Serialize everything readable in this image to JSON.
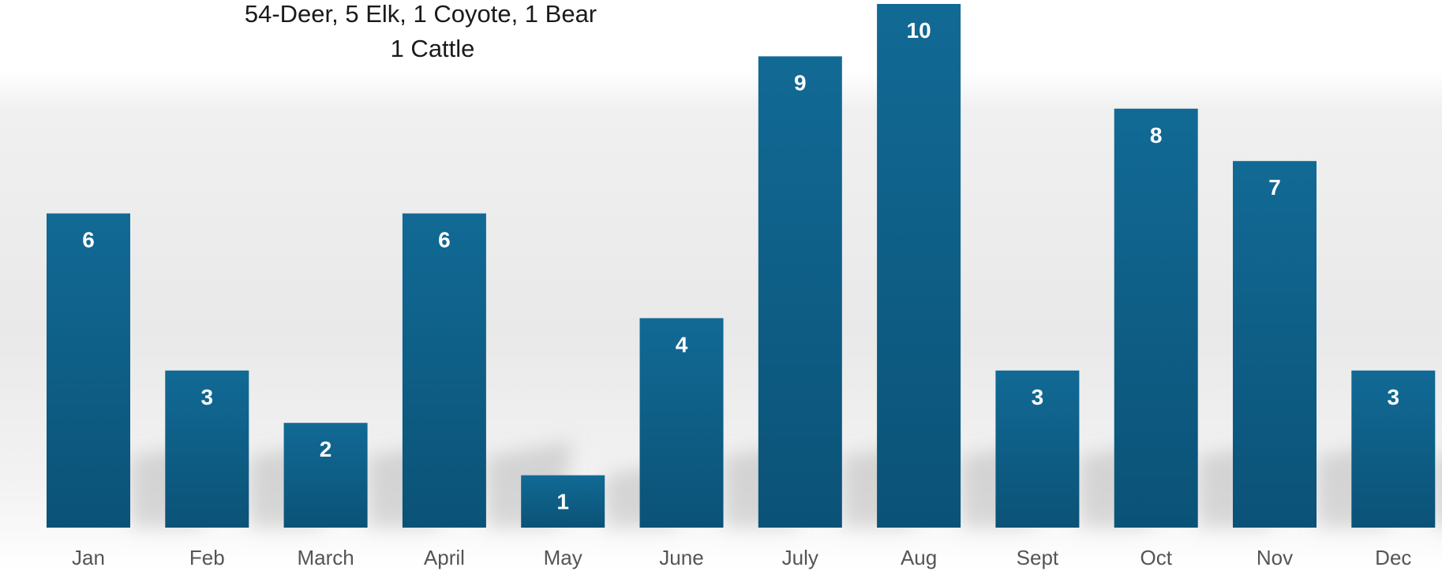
{
  "chart_data": {
    "type": "bar",
    "title_lines": [
      "54-Deer, 5 Elk, 1 Coyote, 1 Bear",
      "1 Cattle"
    ],
    "categories": [
      "Jan",
      "Feb",
      "March",
      "April",
      "May",
      "June",
      "July",
      "Aug",
      "Sept",
      "Oct",
      "Nov",
      "Dec"
    ],
    "values": [
      6,
      3,
      2,
      6,
      1,
      4,
      9,
      10,
      3,
      8,
      7,
      3
    ],
    "data_labels": [
      "6",
      "3",
      "2",
      "6",
      "1",
      "4",
      "9",
      "10",
      "3",
      "8",
      "7",
      "3"
    ],
    "xlabel": "",
    "ylabel": "",
    "ylim": [
      0,
      10
    ],
    "grid": false,
    "legend": "none",
    "bar_color": "#0e5f86",
    "bar_color_dark": "#0a4f72",
    "label_color": "#ffffff",
    "tick_color": "#555555"
  }
}
